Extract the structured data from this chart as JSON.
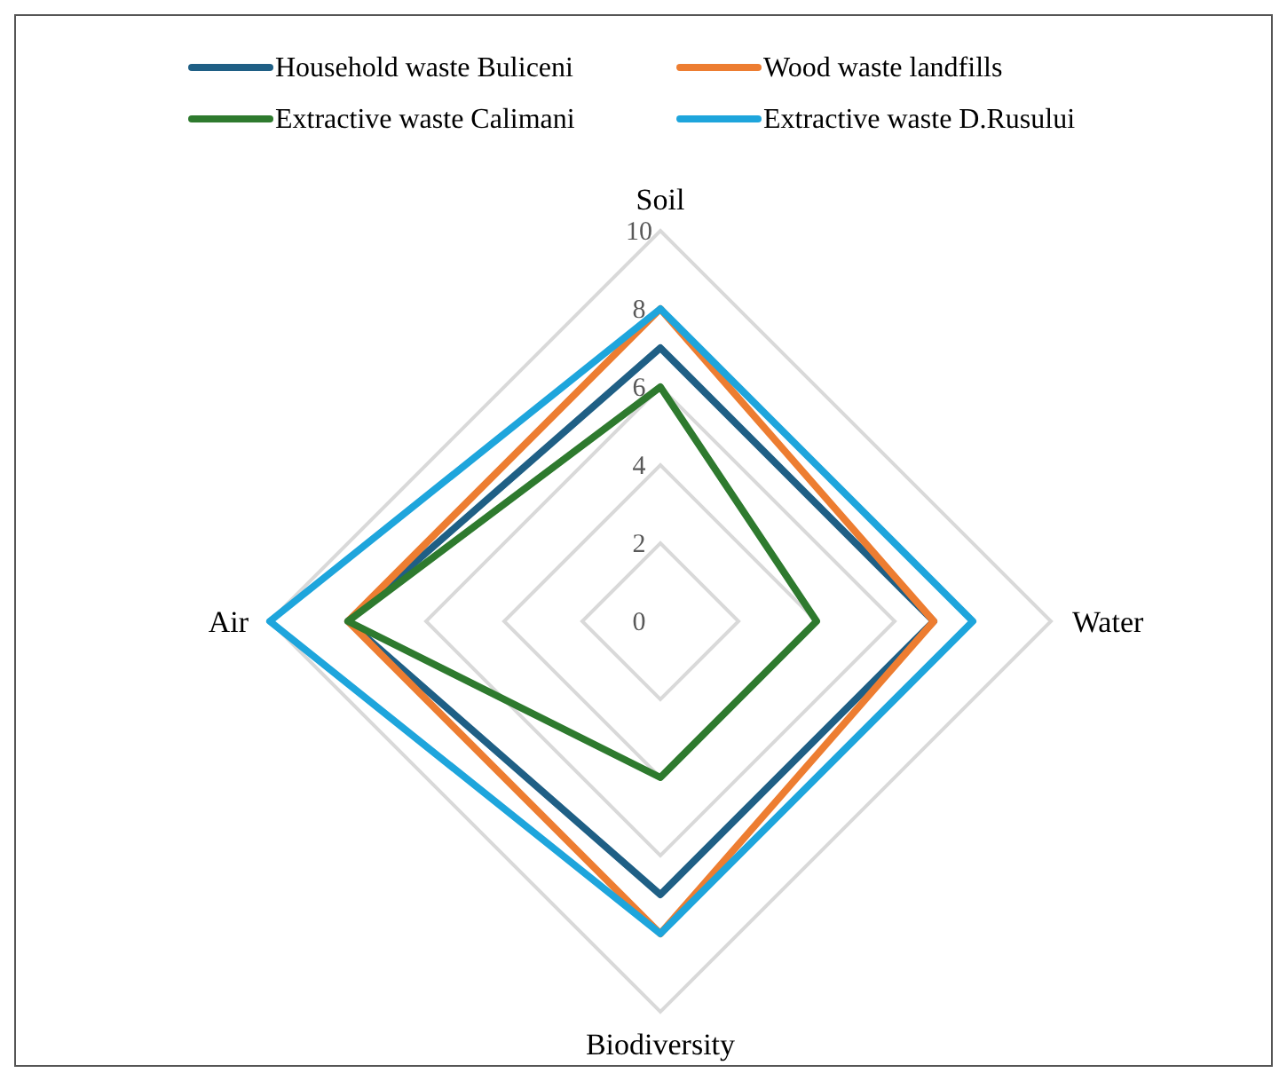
{
  "chart_data": {
    "type": "radar",
    "categories": [
      "Soil",
      "Water",
      "Biodiversity",
      "Air"
    ],
    "series": [
      {
        "name": "Household waste Buliceni",
        "color": "#1f5f85",
        "values": [
          7,
          7,
          7,
          8
        ]
      },
      {
        "name": "Wood waste landfills",
        "color": "#ed7d31",
        "values": [
          8,
          7,
          8,
          8
        ]
      },
      {
        "name": "Extractive waste Calimani",
        "color": "#2e7a2e",
        "values": [
          6,
          4,
          4,
          8
        ]
      },
      {
        "name": "Extractive waste D.Rusului",
        "color": "#1ea5dc",
        "values": [
          8,
          8,
          8,
          10
        ]
      }
    ],
    "ylim": [
      0,
      10
    ],
    "yticks": [
      0,
      2,
      4,
      6,
      8,
      10
    ],
    "grid": true,
    "legend": "top"
  }
}
